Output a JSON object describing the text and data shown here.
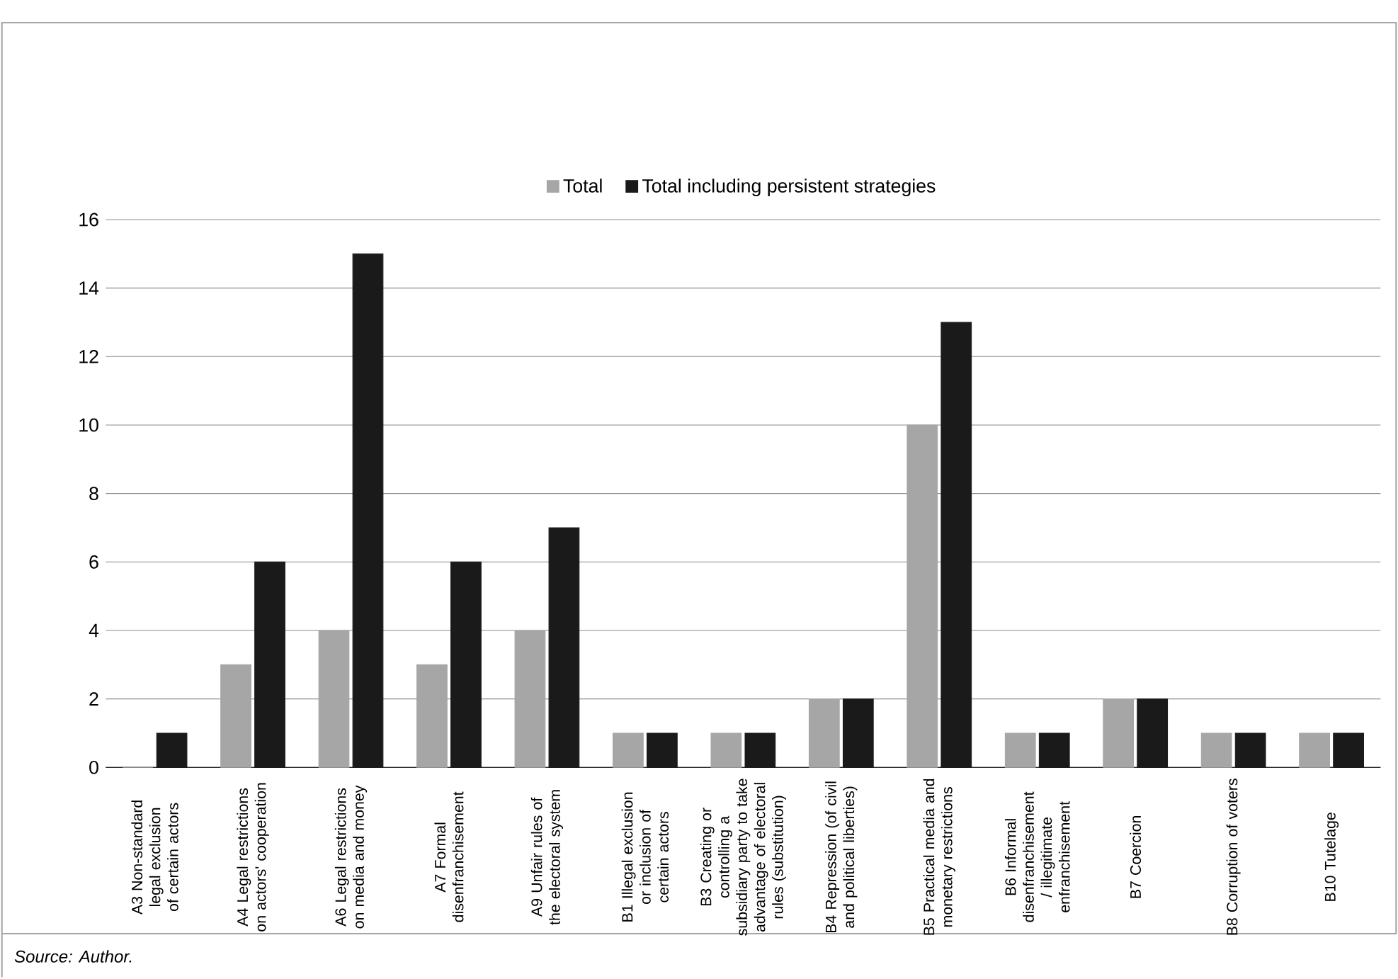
{
  "chart_data": {
    "type": "bar",
    "categories": [
      "A3 Non-standard legal exclusion of certain actors",
      "A4 Legal restrictions on actors' cooperation",
      "A6 Legal restrictions on media and money",
      "A7 Formal disenfranchisement",
      "A9 Unfair rules of the electoral system",
      "B1 Illegal exclusion or inclusion of certain actors",
      "B3 Creating or controlling a subsidiary party to take advantage of electoral rules (substitution)",
      "B4 Repression (of civil and political liberties)",
      "B5 Practical media and monetary restrictions",
      "B6 Informal disenfranchisement / illegitimate enfranchisement",
      "B7 Coercion",
      "B8 Corruption of voters",
      "B10 Tutelage"
    ],
    "series": [
      {
        "name": "Total",
        "color": "#a6a6a6",
        "values": [
          0,
          3,
          4,
          3,
          4,
          1,
          1,
          2,
          10,
          1,
          2,
          1,
          1
        ]
      },
      {
        "name": "Total including persistent strategies",
        "color": "#1a1a1a",
        "values": [
          1,
          6,
          15,
          6,
          7,
          1,
          1,
          2,
          13,
          1,
          2,
          1,
          1
        ]
      }
    ],
    "ylim": [
      0,
      16
    ],
    "yticks": [
      0,
      2,
      4,
      6,
      8,
      10,
      12,
      14,
      16
    ],
    "grid": "y",
    "legend": "top",
    "annotations": [
      "*Source: Author.*"
    ]
  }
}
